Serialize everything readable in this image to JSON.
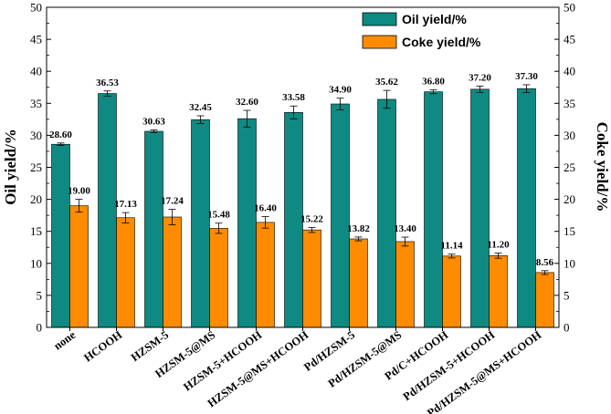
{
  "chart_data": {
    "type": "bar",
    "xlabel": "",
    "ylabel": "Oil yield/%",
    "y2label": "Coke yield/%",
    "ylim": [
      0,
      50
    ],
    "y2lim": [
      0,
      50
    ],
    "yticks": [
      "0",
      "5",
      "10",
      "15",
      "20",
      "25",
      "30",
      "35",
      "40",
      "45",
      "50"
    ],
    "categories": [
      "none",
      "HCOOH",
      "HZSM-5",
      "HZSM-5@MS",
      "HZSM-5+HCOOH",
      "HZSM-5@MS+HCOOH",
      "Pd/HZSM-5",
      "Pd/HZSM-5@MS",
      "Pd/C+HCOOH",
      "Pd/HZSM-5+HCOOH",
      "Pd/HZSM-5@MS+HCOOH"
    ],
    "series": [
      {
        "name": "Oil yield/%",
        "color": "#0e8a82",
        "values": [
          28.6,
          36.53,
          30.63,
          32.45,
          32.6,
          33.58,
          34.9,
          35.62,
          36.8,
          37.2,
          37.3
        ],
        "labels": [
          "28.60",
          "36.53",
          "30.63",
          "32.45",
          "32.60",
          "33.58",
          "34.90",
          "35.62",
          "36.80",
          "37.20",
          "37.30"
        ],
        "errors": [
          0.2,
          0.4,
          0.2,
          0.6,
          1.3,
          1.0,
          0.9,
          1.4,
          0.3,
          0.5,
          0.6
        ]
      },
      {
        "name": "Coke yield/%",
        "color": "#ff8c00",
        "values": [
          19.0,
          17.13,
          17.24,
          15.48,
          16.4,
          15.22,
          13.82,
          13.4,
          11.14,
          11.2,
          8.56
        ],
        "labels": [
          "19.00",
          "17.13",
          "17.24",
          "15.48",
          "16.40",
          "15.22",
          "13.82",
          "13.40",
          "11.14",
          "11.20",
          "8.56"
        ],
        "errors": [
          1.0,
          0.8,
          1.2,
          0.8,
          0.9,
          0.4,
          0.3,
          0.7,
          0.3,
          0.4,
          0.3
        ]
      }
    ],
    "legend": "top-right",
    "grid": false
  }
}
